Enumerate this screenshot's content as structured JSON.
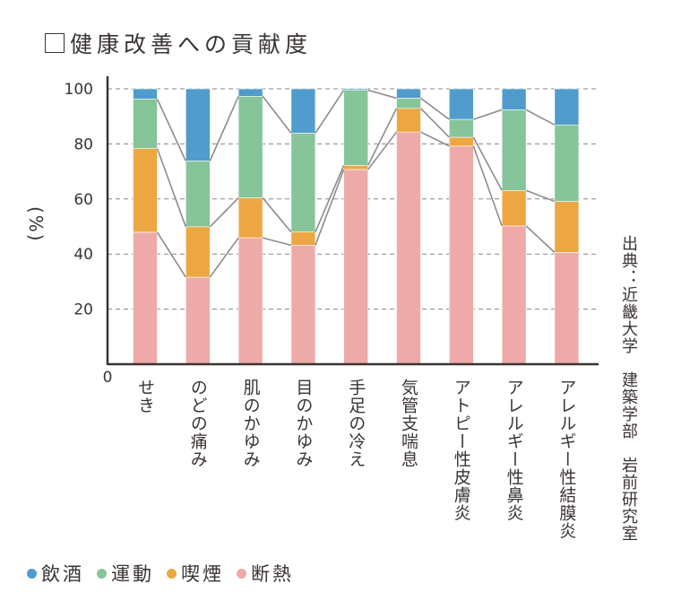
{
  "title": "健康改善への貢献度",
  "source": {
    "prefix": "出典：",
    "parts": [
      "近畿大学",
      "建築学部",
      "岩前研究室"
    ]
  },
  "chart_data": {
    "type": "bar",
    "stacked": true,
    "title": "健康改善への貢献度",
    "xlabel": "",
    "ylabel": "(%)",
    "ylim": [
      0,
      100
    ],
    "yticks": [
      0,
      20,
      40,
      60,
      80,
      100
    ],
    "grid": true,
    "legend_position": "bottom-left",
    "categories": [
      "せき",
      "のどの痛み",
      "肌のかゆみ",
      "目のかゆみ",
      "手足の冷え",
      "気管支喘息",
      "アトピー性皮膚炎",
      "アレルギー性鼻炎",
      "アレルギー性結膜炎"
    ],
    "series": [
      {
        "name": "断熱",
        "color": "#eeaaa8",
        "values": [
          47.9,
          31.6,
          45.9,
          43.2,
          70.7,
          84.3,
          79.2,
          50.2,
          40.6
        ]
      },
      {
        "name": "喫煙",
        "color": "#eda742",
        "values": [
          30.4,
          18.3,
          14.5,
          4.8,
          1.5,
          8.6,
          3.2,
          12.9,
          18.5
        ]
      },
      {
        "name": "運動",
        "color": "#86c499",
        "values": [
          18.0,
          23.9,
          36.9,
          35.9,
          27.3,
          3.7,
          6.5,
          29.3,
          27.8
        ]
      },
      {
        "name": "飲酒",
        "color": "#4f9ccd",
        "values": [
          3.7,
          26.2,
          2.7,
          16.1,
          0.5,
          3.4,
          11.1,
          7.6,
          13.1
        ]
      }
    ],
    "legend_order": [
      "飲酒",
      "運動",
      "喫煙",
      "断熱"
    ]
  }
}
